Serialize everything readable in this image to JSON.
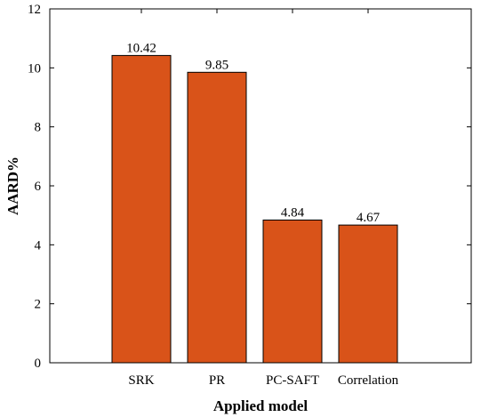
{
  "chart_data": {
    "type": "bar",
    "categories": [
      "SRK",
      "PR",
      "PC-SAFT",
      "Correlation"
    ],
    "values": [
      10.42,
      9.85,
      4.84,
      4.67
    ],
    "data_labels": [
      "10.42",
      "9.85",
      "4.84",
      "4.67"
    ],
    "title": "",
    "xlabel": "Applied model",
    "ylabel": "AARD%",
    "ylim": [
      0,
      12
    ],
    "yticks": [
      0,
      2,
      4,
      6,
      8,
      10,
      12
    ],
    "ytick_labels": [
      "0",
      "2",
      "4",
      "6",
      "8",
      "10",
      "12"
    ],
    "grid": false,
    "legend": "none",
    "colors": {
      "bar_fill": "#d95319",
      "bar_stroke": "#000000",
      "axis": "#000000"
    }
  }
}
